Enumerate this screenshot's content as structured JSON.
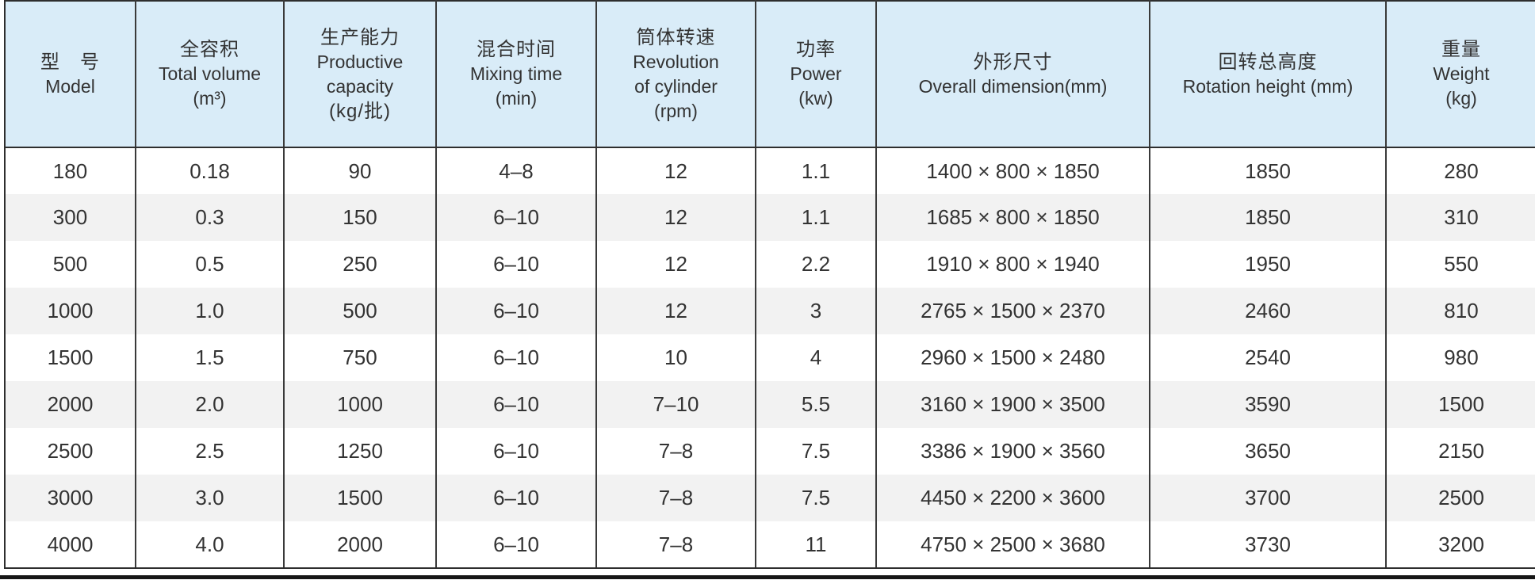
{
  "meta": {
    "description": "Mixer machine specification table, bilingual Chinese/English",
    "colors": {
      "header_bg": "#d9ecf8",
      "stripe_bg": "#f2f2f2",
      "row_bg": "#ffffff",
      "border": "#3a3a3a",
      "frame": "#2e2e2e",
      "bottom_rule": "#161616",
      "text": "#333333"
    }
  },
  "table": {
    "columns": [
      {
        "id": "model",
        "lines": [
          "型　号",
          "Model"
        ]
      },
      {
        "id": "total-volume",
        "lines": [
          "全容积",
          "Total volume",
          "(m³)"
        ]
      },
      {
        "id": "productive-capacity",
        "lines": [
          "生产能力",
          "Productive",
          "capacity",
          "(kg/批)"
        ]
      },
      {
        "id": "mixing-time",
        "lines": [
          "混合时间",
          "Mixing time",
          "(min)"
        ]
      },
      {
        "id": "revolution",
        "lines": [
          "筒体转速",
          "Revolution",
          "of cylinder",
          "(rpm)"
        ]
      },
      {
        "id": "power",
        "lines": [
          "功率",
          "Power",
          "(kw)"
        ]
      },
      {
        "id": "overall-dimension",
        "lines": [
          "外形尺寸",
          "Overall dimension(mm)"
        ]
      },
      {
        "id": "rotation-height",
        "lines": [
          "回转总高度",
          "Rotation height (mm)"
        ]
      },
      {
        "id": "weight",
        "lines": [
          "重量",
          "Weight",
          "(kg)"
        ]
      }
    ],
    "rows": [
      [
        "180",
        "0.18",
        "90",
        "4–8",
        "12",
        "1.1",
        "1400 × 800 × 1850",
        "1850",
        "280"
      ],
      [
        "300",
        "0.3",
        "150",
        "6–10",
        "12",
        "1.1",
        "1685 × 800 × 1850",
        "1850",
        "310"
      ],
      [
        "500",
        "0.5",
        "250",
        "6–10",
        "12",
        "2.2",
        "1910 × 800 × 1940",
        "1950",
        "550"
      ],
      [
        "1000",
        "1.0",
        "500",
        "6–10",
        "12",
        "3",
        "2765 × 1500 × 2370",
        "2460",
        "810"
      ],
      [
        "1500",
        "1.5",
        "750",
        "6–10",
        "10",
        "4",
        "2960 × 1500 × 2480",
        "2540",
        "980"
      ],
      [
        "2000",
        "2.0",
        "1000",
        "6–10",
        "7–10",
        "5.5",
        "3160 × 1900 × 3500",
        "3590",
        "1500"
      ],
      [
        "2500",
        "2.5",
        "1250",
        "6–10",
        "7–8",
        "7.5",
        "3386 × 1900 × 3560",
        "3650",
        "2150"
      ],
      [
        "3000",
        "3.0",
        "1500",
        "6–10",
        "7–8",
        "7.5",
        "4450 × 2200 × 3600",
        "3700",
        "2500"
      ],
      [
        "4000",
        "4.0",
        "2000",
        "6–10",
        "7–8",
        "11",
        "4750 × 2500 × 3680",
        "3730",
        "3200"
      ]
    ]
  },
  "chart_data": {
    "type": "table",
    "title": "Mixer specification table",
    "columns": [
      "型号 Model",
      "全容积 Total volume (m³)",
      "生产能力 Productive capacity (kg/批)",
      "混合时间 Mixing time (min)",
      "筒体转速 Revolution of cylinder (rpm)",
      "功率 Power (kw)",
      "外形尺寸 Overall dimension(mm)",
      "回转总高度 Rotation height (mm)",
      "重量 Weight (kg)"
    ],
    "rows": [
      [
        "180",
        "0.18",
        "90",
        "4–8",
        "12",
        "1.1",
        "1400 × 800 × 1850",
        "1850",
        "280"
      ],
      [
        "300",
        "0.3",
        "150",
        "6–10",
        "12",
        "1.1",
        "1685 × 800 × 1850",
        "1850",
        "310"
      ],
      [
        "500",
        "0.5",
        "250",
        "6–10",
        "12",
        "2.2",
        "1910 × 800 × 1940",
        "1950",
        "550"
      ],
      [
        "1000",
        "1.0",
        "500",
        "6–10",
        "12",
        "3",
        "2765 × 1500 × 2370",
        "2460",
        "810"
      ],
      [
        "1500",
        "1.5",
        "750",
        "6–10",
        "10",
        "4",
        "2960 × 1500 × 2480",
        "2540",
        "980"
      ],
      [
        "2000",
        "2.0",
        "1000",
        "6–10",
        "7–10",
        "5.5",
        "3160 × 1900 × 3500",
        "3590",
        "1500"
      ],
      [
        "2500",
        "2.5",
        "1250",
        "6–10",
        "7–8",
        "7.5",
        "3386 × 1900 × 3560",
        "3650",
        "2150"
      ],
      [
        "3000",
        "3.0",
        "1500",
        "6–10",
        "7–8",
        "7.5",
        "4450 × 2200 × 3600",
        "3700",
        "2500"
      ],
      [
        "4000",
        "4.0",
        "2000",
        "6–10",
        "7–8",
        "11",
        "4750 × 2500 × 3680",
        "3730",
        "3200"
      ]
    ]
  }
}
